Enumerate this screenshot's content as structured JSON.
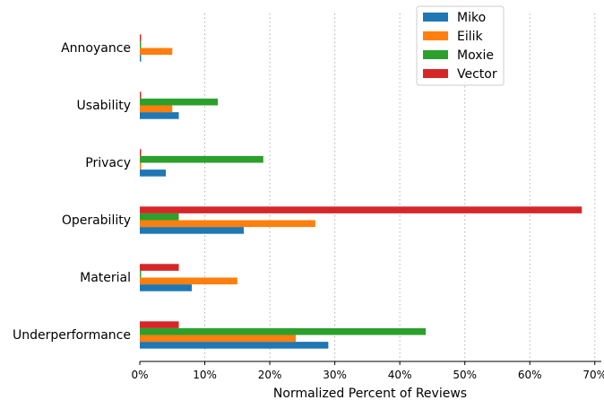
{
  "chart_data": {
    "type": "bar",
    "orientation": "horizontal",
    "xlabel": "Normalized Percent of Reviews",
    "xlim": [
      0,
      71
    ],
    "xticks": [
      0,
      10,
      20,
      30,
      40,
      50,
      60,
      70
    ],
    "tick_format": "{v}%",
    "grid": "x-dotted",
    "legend_position": "top-right",
    "categories": [
      "Annoyance",
      "Usability",
      "Privacy",
      "Operability",
      "Material",
      "Underperformance"
    ],
    "series": [
      {
        "name": "Miko",
        "color": "#1f77b4",
        "values": [
          0.2,
          6,
          4,
          16,
          8,
          29
        ]
      },
      {
        "name": "Eilik",
        "color": "#ff7f0e",
        "values": [
          5,
          5,
          0.2,
          27,
          15,
          24
        ]
      },
      {
        "name": "Moxie",
        "color": "#2ca02c",
        "values": [
          0.2,
          12,
          19,
          6,
          0.2,
          44
        ]
      },
      {
        "name": "Vector",
        "color": "#d62728",
        "values": [
          0.2,
          0.2,
          0.2,
          68,
          6,
          6
        ]
      }
    ]
  }
}
